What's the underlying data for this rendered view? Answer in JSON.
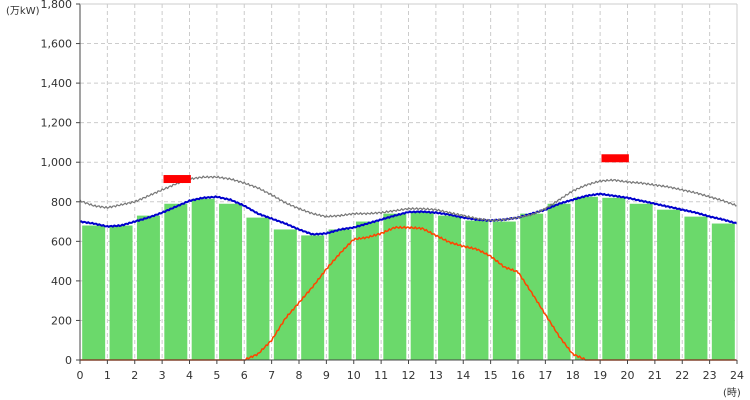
{
  "chart_data": {
    "type": "bar+line",
    "y_unit_label": "(万kW)",
    "x_unit_label": "(時)",
    "ylim": [
      0,
      1800
    ],
    "xlim": [
      0,
      24
    ],
    "y_ticks": [
      0,
      200,
      400,
      600,
      800,
      1000,
      1200,
      1400,
      1600,
      1800
    ],
    "y_tick_labels": [
      "0",
      "200",
      "400",
      "600",
      "800",
      "1,000",
      "1,200",
      "1,400",
      "1,600",
      "1,800"
    ],
    "x_ticks": [
      0,
      1,
      2,
      3,
      4,
      5,
      6,
      7,
      8,
      9,
      10,
      11,
      12,
      13,
      14,
      15,
      16,
      17,
      18,
      19,
      20,
      21,
      22,
      23,
      24
    ],
    "grid": true,
    "colors": {
      "bars": "#6bd96b",
      "blue_line": "#0000cc",
      "gray_line": "#777777",
      "orange_line": "#ff4400",
      "markers": "#ff0000",
      "grid": "#cccccc"
    },
    "bars": {
      "hours": [
        0,
        1,
        2,
        3,
        4,
        5,
        6,
        7,
        8,
        9,
        10,
        11,
        12,
        13,
        14,
        15,
        16,
        17,
        18,
        19,
        20,
        21,
        22,
        23
      ],
      "values": [
        680,
        680,
        730,
        790,
        815,
        790,
        720,
        660,
        630,
        660,
        700,
        740,
        750,
        730,
        705,
        700,
        740,
        790,
        825,
        820,
        790,
        760,
        725,
        690
      ]
    },
    "series": [
      {
        "key": "blue",
        "x": [
          0,
          0.5,
          1,
          1.5,
          2,
          2.5,
          3,
          3.5,
          4,
          4.5,
          5,
          5.5,
          6,
          6.5,
          7,
          7.5,
          8,
          8.5,
          9,
          9.5,
          10,
          10.5,
          11,
          11.5,
          12,
          12.5,
          13,
          13.5,
          14,
          14.5,
          15,
          15.5,
          16,
          16.5,
          17,
          17.5,
          18,
          18.5,
          19,
          19.5,
          20,
          20.5,
          21,
          21.5,
          22,
          22.5,
          23,
          23.5,
          24
        ],
        "y": [
          700,
          690,
          675,
          680,
          700,
          720,
          745,
          775,
          805,
          820,
          825,
          810,
          780,
          740,
          715,
          690,
          660,
          635,
          640,
          660,
          670,
          690,
          710,
          730,
          748,
          750,
          745,
          735,
          720,
          710,
          705,
          710,
          720,
          740,
          760,
          790,
          810,
          830,
          840,
          830,
          820,
          805,
          790,
          775,
          760,
          745,
          725,
          710,
          690
        ]
      },
      {
        "key": "gray",
        "x": [
          0,
          0.5,
          1,
          1.5,
          2,
          2.5,
          3,
          3.5,
          4,
          4.5,
          5,
          5.5,
          6,
          6.5,
          7,
          7.5,
          8,
          8.5,
          9,
          9.5,
          10,
          10.5,
          11,
          11.5,
          12,
          12.5,
          13,
          13.5,
          14,
          14.5,
          15,
          15.5,
          16,
          16.5,
          17,
          17.5,
          18,
          18.5,
          19,
          19.5,
          20,
          20.5,
          21,
          21.5,
          22,
          22.5,
          23,
          23.5,
          24
        ],
        "y": [
          805,
          780,
          770,
          785,
          800,
          830,
          860,
          890,
          915,
          925,
          925,
          915,
          895,
          870,
          835,
          795,
          765,
          740,
          725,
          730,
          740,
          740,
          745,
          755,
          765,
          765,
          760,
          745,
          730,
          715,
          705,
          710,
          720,
          735,
          765,
          810,
          855,
          885,
          905,
          910,
          900,
          895,
          885,
          875,
          860,
          845,
          825,
          805,
          780
        ]
      },
      {
        "key": "orange",
        "x": [
          0,
          1,
          2,
          3,
          4,
          5,
          6,
          6.5,
          7,
          7.5,
          8,
          8.5,
          9,
          9.5,
          10,
          10.5,
          11,
          11.5,
          12,
          12.5,
          13,
          13.5,
          14,
          14.5,
          15,
          15.5,
          16,
          16.5,
          17,
          17.5,
          18,
          18.5,
          19,
          20,
          21,
          22,
          23,
          24
        ],
        "y": [
          0,
          0,
          0,
          0,
          0,
          0,
          0,
          30,
          100,
          210,
          290,
          370,
          460,
          540,
          610,
          620,
          640,
          670,
          670,
          665,
          630,
          595,
          575,
          560,
          525,
          470,
          445,
          340,
          230,
          120,
          30,
          0,
          0,
          0,
          0,
          0,
          0,
          0
        ]
      }
    ],
    "markers": [
      {
        "x_start": 3.0,
        "x_end": 4.0,
        "y": 915
      },
      {
        "x_start": 19.0,
        "x_end": 20.0,
        "y": 1020
      }
    ]
  }
}
